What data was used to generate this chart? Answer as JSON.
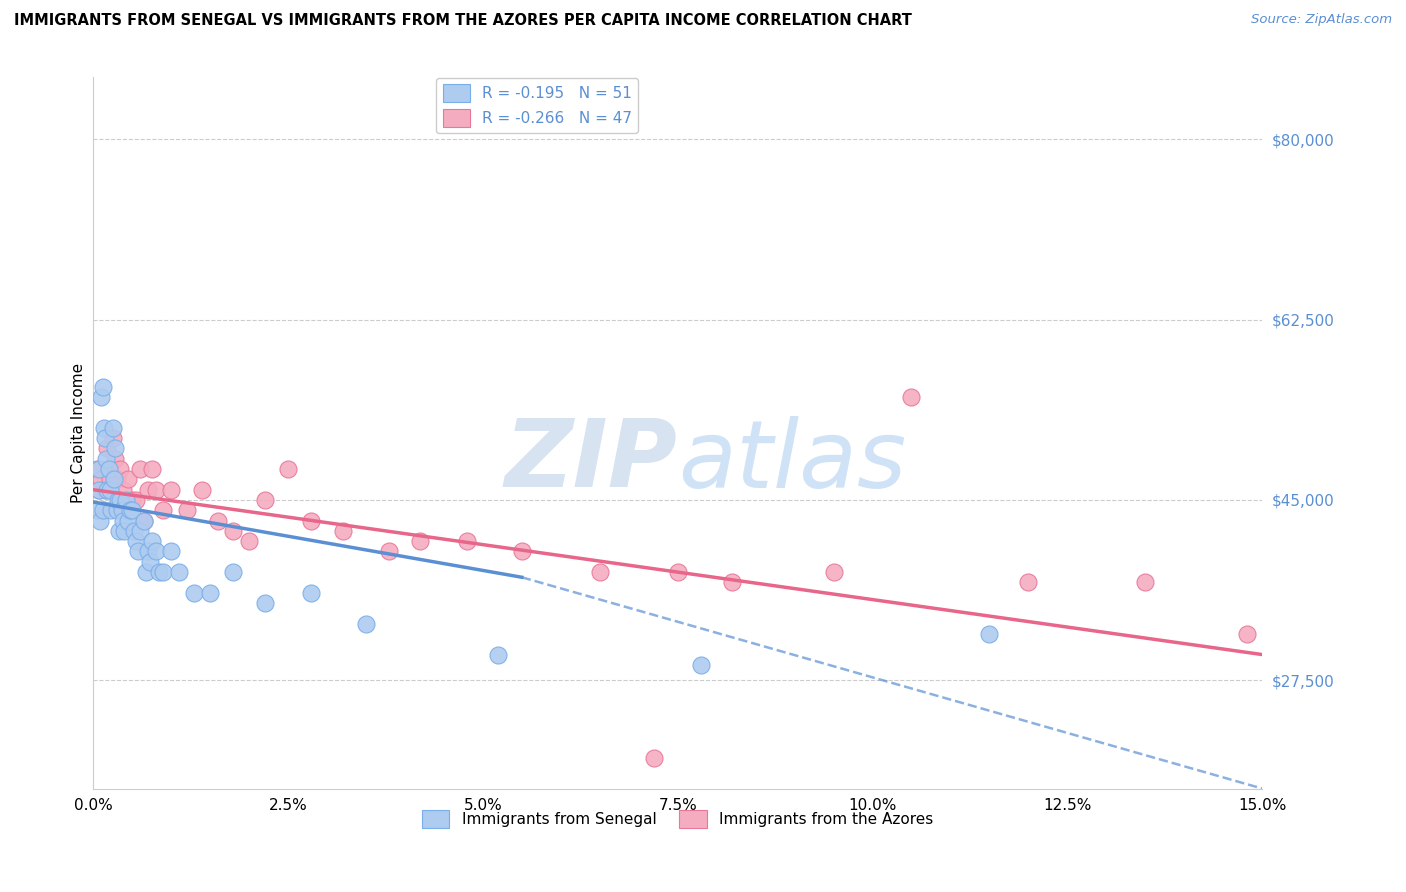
{
  "title": "IMMIGRANTS FROM SENEGAL VS IMMIGRANTS FROM THE AZORES PER CAPITA INCOME CORRELATION CHART",
  "source": "Source: ZipAtlas.com",
  "ylabel": "Per Capita Income",
  "ytick_labels": [
    "$27,500",
    "$45,000",
    "$62,500",
    "$80,000"
  ],
  "ytick_vals": [
    27500,
    45000,
    62500,
    80000
  ],
  "xtick_labels": [
    "0.0%",
    "2.5%",
    "5.0%",
    "7.5%",
    "10.0%",
    "12.5%",
    "15.0%"
  ],
  "xtick_vals": [
    0.0,
    2.5,
    5.0,
    7.5,
    10.0,
    12.5,
    15.0
  ],
  "xlim": [
    0.0,
    15.0
  ],
  "ylim": [
    17000,
    86000
  ],
  "line1_color": "#5b8fd4",
  "line2_color": "#e8668a",
  "scatter1_color": "#aecbf0",
  "scatter2_color": "#f4adc0",
  "scatter1_edge": "#7aaee8",
  "scatter2_edge": "#e8779a",
  "watermark_zip": "ZIP",
  "watermark_atlas": "atlas",
  "R1": -0.195,
  "N1": 51,
  "R2": -0.266,
  "N2": 47,
  "senegal_x": [
    0.05,
    0.07,
    0.08,
    0.09,
    0.1,
    0.12,
    0.13,
    0.14,
    0.15,
    0.17,
    0.18,
    0.2,
    0.22,
    0.23,
    0.25,
    0.27,
    0.28,
    0.3,
    0.32,
    0.33,
    0.35,
    0.37,
    0.38,
    0.4,
    0.42,
    0.45,
    0.47,
    0.5,
    0.52,
    0.55,
    0.58,
    0.6,
    0.65,
    0.68,
    0.7,
    0.73,
    0.75,
    0.8,
    0.85,
    0.9,
    1.0,
    1.1,
    1.3,
    1.5,
    1.8,
    2.2,
    2.8,
    3.5,
    5.2,
    7.8,
    11.5
  ],
  "senegal_y": [
    44000,
    48000,
    46000,
    43000,
    55000,
    44000,
    56000,
    52000,
    51000,
    49000,
    46000,
    48000,
    46000,
    44000,
    52000,
    47000,
    50000,
    44000,
    45000,
    42000,
    45000,
    44000,
    43000,
    42000,
    45000,
    43000,
    44000,
    44000,
    42000,
    41000,
    40000,
    42000,
    43000,
    38000,
    40000,
    39000,
    41000,
    40000,
    38000,
    38000,
    40000,
    38000,
    36000,
    36000,
    38000,
    35000,
    36000,
    33000,
    30000,
    29000,
    32000
  ],
  "azores_x": [
    0.05,
    0.08,
    0.1,
    0.12,
    0.15,
    0.18,
    0.2,
    0.22,
    0.25,
    0.28,
    0.3,
    0.33,
    0.35,
    0.38,
    0.4,
    0.45,
    0.5,
    0.55,
    0.6,
    0.65,
    0.7,
    0.75,
    0.8,
    0.9,
    1.0,
    1.2,
    1.4,
    1.6,
    1.8,
    2.0,
    2.2,
    2.5,
    2.8,
    3.2,
    3.8,
    4.2,
    4.8,
    5.5,
    6.5,
    7.5,
    8.2,
    9.5,
    10.5,
    12.0,
    13.5,
    14.8,
    7.2
  ],
  "azores_y": [
    48000,
    46000,
    47000,
    44000,
    46000,
    50000,
    48000,
    47000,
    51000,
    49000,
    47000,
    45000,
    48000,
    46000,
    44000,
    47000,
    45000,
    45000,
    48000,
    43000,
    46000,
    48000,
    46000,
    44000,
    46000,
    44000,
    46000,
    43000,
    42000,
    41000,
    45000,
    48000,
    43000,
    42000,
    40000,
    41000,
    41000,
    40000,
    38000,
    38000,
    37000,
    38000,
    55000,
    37000,
    37000,
    32000,
    20000
  ],
  "line1_x0": 0.0,
  "line1_y0": 44800,
  "line1_x1": 5.5,
  "line1_y1": 37500,
  "line2_x0": 0.0,
  "line2_y0": 46000,
  "line2_x1": 15.0,
  "line2_y1": 30000,
  "dash_x0": 5.5,
  "dash_y0": 37500,
  "dash_x1": 15.0,
  "dash_y1": 17000
}
